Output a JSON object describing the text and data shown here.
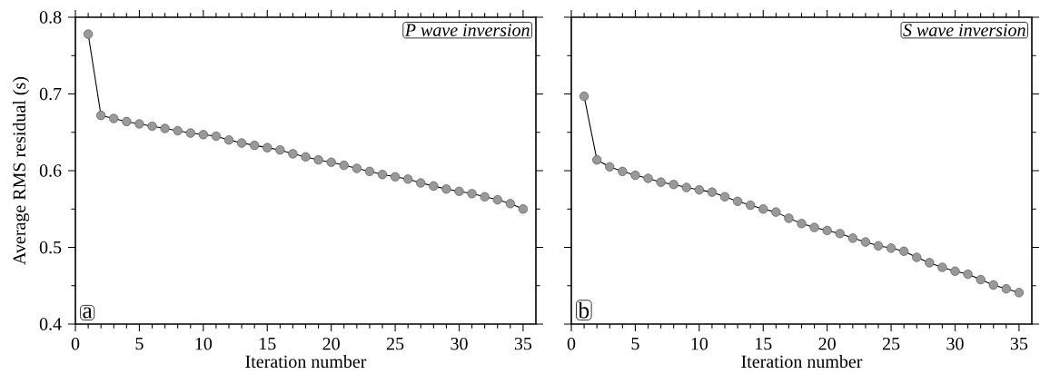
{
  "chart_data": [
    {
      "type": "line",
      "x": [
        1,
        2,
        3,
        4,
        5,
        6,
        7,
        8,
        9,
        10,
        11,
        12,
        13,
        14,
        15,
        16,
        17,
        18,
        19,
        20,
        21,
        22,
        23,
        24,
        25,
        26,
        27,
        28,
        29,
        30,
        31,
        32,
        33,
        34,
        35
      ],
      "series": [
        {
          "color": "#999999",
          "values": [
            0.778,
            0.672,
            0.668,
            0.664,
            0.661,
            0.658,
            0.655,
            0.652,
            0.649,
            0.647,
            0.645,
            0.64,
            0.636,
            0.633,
            0.63,
            0.627,
            0.622,
            0.618,
            0.614,
            0.611,
            0.607,
            0.603,
            0.599,
            0.595,
            0.592,
            0.589,
            0.584,
            0.58,
            0.576,
            0.573,
            0.57,
            0.566,
            0.562,
            0.557,
            0.55
          ]
        }
      ],
      "xlim": [
        0,
        36
      ],
      "ylim": [
        0.4,
        0.8
      ],
      "xticks": [
        0,
        5,
        10,
        15,
        20,
        25,
        30,
        35
      ],
      "yticks": [
        0.4,
        0.5,
        0.6,
        0.7,
        0.8
      ],
      "xlabel": "Iteration number",
      "ylabel": "Average RMS residual (s)",
      "marker": "circle",
      "annotations": [
        "P wave inversion",
        "a"
      ]
    },
    {
      "type": "line",
      "x": [
        1,
        2,
        3,
        4,
        5,
        6,
        7,
        8,
        9,
        10,
        11,
        12,
        13,
        14,
        15,
        16,
        17,
        18,
        19,
        20,
        21,
        22,
        23,
        24,
        25,
        26,
        27,
        28,
        29,
        30,
        31,
        32,
        33,
        34,
        35
      ],
      "series": [
        {
          "color": "#999999",
          "values": [
            0.697,
            0.614,
            0.605,
            0.599,
            0.594,
            0.59,
            0.585,
            0.582,
            0.578,
            0.575,
            0.572,
            0.566,
            0.56,
            0.555,
            0.55,
            0.546,
            0.538,
            0.531,
            0.526,
            0.522,
            0.518,
            0.512,
            0.507,
            0.502,
            0.499,
            0.495,
            0.487,
            0.48,
            0.474,
            0.469,
            0.465,
            0.458,
            0.451,
            0.446,
            0.441
          ]
        }
      ],
      "xlim": [
        0,
        36
      ],
      "ylim": [
        0.4,
        0.8
      ],
      "xticks": [
        0,
        5,
        10,
        15,
        20,
        25,
        30,
        35
      ],
      "yticks": [
        0.4,
        0.5,
        0.6,
        0.7,
        0.8
      ],
      "xlabel": "Iteration number",
      "marker": "circle",
      "tick_labels": "x",
      "annotations": [
        "S wave inversion",
        "b"
      ]
    }
  ]
}
